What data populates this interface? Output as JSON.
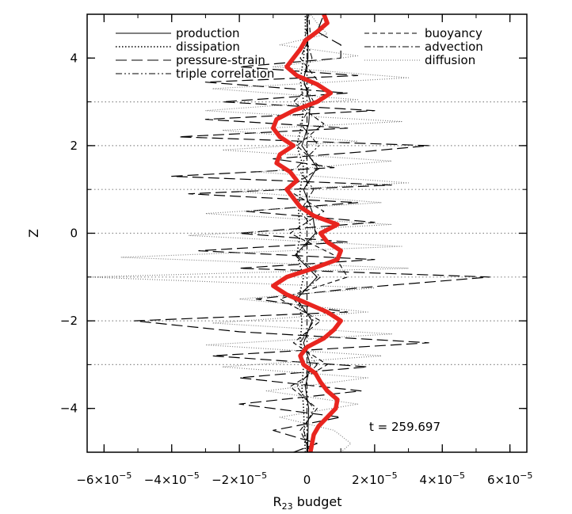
{
  "chart_data": {
    "type": "line",
    "title": "",
    "xlabel": "R",
    "xlabel_sub": "23",
    "xlabel_suffix": " budget",
    "ylabel": "Z",
    "xlim": [
      -6.5e-05,
      6.5e-05
    ],
    "ylim": [
      -5,
      5
    ],
    "grid": false,
    "legend_position": "top",
    "x_ticks": [
      {
        "value": -6e-05,
        "mant": "−6×10",
        "exp": "−5"
      },
      {
        "value": -4e-05,
        "mant": "−4×10",
        "exp": "−5"
      },
      {
        "value": -2e-05,
        "mant": "−2×10",
        "exp": "−5"
      },
      {
        "value": 0,
        "mant": "0",
        "exp": ""
      },
      {
        "value": 2e-05,
        "mant": "2×10",
        "exp": "−5"
      },
      {
        "value": 4e-05,
        "mant": "4×10",
        "exp": "−5"
      },
      {
        "value": 6e-05,
        "mant": "6×10",
        "exp": "−5"
      }
    ],
    "y_ticks": [
      {
        "value": -4,
        "label": "−4"
      },
      {
        "value": -2,
        "label": "−2"
      },
      {
        "value": 0,
        "label": "0"
      },
      {
        "value": 2,
        "label": "2"
      },
      {
        "value": 4,
        "label": "4"
      }
    ],
    "annotation": "t  =  259.697",
    "reference_levels": [
      3,
      2,
      1,
      0,
      -1,
      -2,
      -3
    ],
    "series": [
      {
        "name": "production",
        "dash": "solid",
        "color": "#000000",
        "width": 1.1,
        "z": [
          -5,
          -4.5,
          -4,
          -3.5,
          -3,
          -2.5,
          -2,
          -1.5,
          -1,
          -0.5,
          0,
          0.5,
          1,
          1.5,
          2,
          2.5,
          3,
          3.5,
          4,
          4.5,
          5
        ],
        "x": [
          2e-07,
          3e-07,
          5e-07,
          -5e-07,
          1e-06,
          -1e-06,
          1.5e-06,
          -3e-06,
          3e-06,
          -3.5e-06,
          2.5e-06,
          1.5e-06,
          -1e-06,
          3e-06,
          -1.5e-06,
          5e-07,
          1e-06,
          -1e-06,
          3e-07,
          2e-07,
          1e-07
        ]
      },
      {
        "name": "dissipation",
        "dash": "dot",
        "color": "#000000",
        "width": 1.6,
        "z": [
          -5,
          -4.5,
          -4,
          -3.5,
          -3,
          -2.5,
          -2,
          -1.5,
          -1,
          -0.5,
          0,
          0.5,
          1,
          1.5,
          2,
          2.5,
          3,
          3.5,
          4,
          4.5,
          5
        ],
        "x": [
          -5e-07,
          -8e-07,
          -1e-06,
          -1.5e-06,
          -1e-06,
          -2e-06,
          -1.5e-06,
          -2.5e-06,
          -1e-06,
          -3e-06,
          -2e-06,
          -2.5e-06,
          -2e-06,
          -1e-06,
          -3e-06,
          -1.5e-06,
          -1e-06,
          -2e-06,
          -1e-06,
          -5e-07,
          -5e-07
        ]
      },
      {
        "name": "pressure-strain",
        "dash": "longdash",
        "color": "#000000",
        "width": 1.2,
        "z": [
          -5,
          -4.8,
          -4.5,
          -4.2,
          -3.9,
          -3.6,
          -3.3,
          -3.05,
          -2.8,
          -2.5,
          -2.25,
          -2.0,
          -1.8,
          -1.5,
          -1.25,
          -1.0,
          -0.8,
          -0.6,
          -0.4,
          -0.2,
          0,
          0.25,
          0.5,
          0.7,
          0.9,
          1.1,
          1.3,
          1.5,
          1.7,
          1.85,
          2.0,
          2.2,
          2.4,
          2.6,
          2.8,
          3.0,
          3.2,
          3.45,
          3.6,
          3.8,
          4.0,
          4.3,
          4.6,
          5.0
        ],
        "x": [
          -4e-06,
          3e-06,
          -1e-05,
          1e-05,
          -2e-05,
          1.6e-05,
          -2e-05,
          1.8e-05,
          -2.8e-05,
          3.6e-05,
          -2e-05,
          -5.1e-05,
          1.2e-05,
          -1.5e-05,
          1.5e-05,
          5.4e-05,
          -2e-05,
          2e-05,
          -3.2e-05,
          1.2e-05,
          -2e-05,
          2e-05,
          -1.8e-05,
          1.5e-05,
          -3.5e-05,
          2.5e-05,
          -4e-05,
          8e-06,
          -1e-05,
          1.5e-05,
          3.6e-05,
          -3.8e-05,
          1.2e-05,
          -3e-05,
          2e-05,
          -2.5e-05,
          1.2e-05,
          -3e-05,
          1.5e-05,
          -2e-05,
          1e-05,
          1e-05,
          3e-06,
          5e-06
        ]
      },
      {
        "name": "triple correlation",
        "dash": "dashdotdot",
        "color": "#000000",
        "width": 1.0,
        "z": [
          -5,
          -4.5,
          -4,
          -3.5,
          -3,
          -2.5,
          -2,
          -1.5,
          -1,
          -0.5,
          0,
          0.5,
          1,
          1.5,
          2,
          2.5,
          3,
          3.5,
          4,
          4.5,
          5
        ],
        "x": [
          1e-06,
          -1e-06,
          2e-06,
          -3e-06,
          3e-06,
          -2e-06,
          2e-06,
          -4e-06,
          4e-06,
          -3e-06,
          3e-06,
          -2e-06,
          2e-06,
          -3e-06,
          3.5e-06,
          -2e-06,
          2e-06,
          -1.5e-06,
          1.5e-06,
          -5e-07,
          5e-07
        ]
      },
      {
        "name": "buoyancy",
        "dash": "shortdash",
        "color": "#000000",
        "width": 1.1,
        "z": [
          -5,
          -4.5,
          -4,
          -3.5,
          -3,
          -2.5,
          -2,
          -1.5,
          -1,
          -0.5,
          0,
          0.5,
          1,
          1.5,
          2,
          2.5,
          3,
          3.5,
          4,
          4.5,
          5
        ],
        "x": [
          1e-06,
          -2e-06,
          3e-06,
          -5e-06,
          6e-06,
          -4e-06,
          4e-06,
          -8e-06,
          1.2e-05,
          8e-06,
          -5e-06,
          5e-06,
          -6e-06,
          4e-06,
          -3e-06,
          5e-06,
          -4e-06,
          3e-06,
          -2e-06,
          1e-06,
          5e-07
        ]
      },
      {
        "name": "advection",
        "dash": "dashdot",
        "color": "#000000",
        "width": 1.1,
        "z": [
          -5,
          5
        ],
        "x": [
          0,
          0
        ]
      },
      {
        "name": "diffusion",
        "dash": "finedot",
        "color": "#7a7a7a",
        "width": 1.1,
        "z": [
          -5,
          -4.8,
          -4.5,
          -4.2,
          -3.9,
          -3.6,
          -3.3,
          -3.05,
          -2.8,
          -2.55,
          -2.3,
          -2.05,
          -1.8,
          -1.5,
          -1.25,
          -1.0,
          -0.8,
          -0.55,
          -0.3,
          -0.05,
          0.2,
          0.45,
          0.7,
          0.95,
          1.15,
          1.4,
          1.65,
          1.9,
          2.1,
          2.35,
          2.55,
          2.8,
          3.05,
          3.3,
          3.55,
          3.8,
          4.05,
          4.3,
          4.55,
          4.8,
          5.0
        ],
        "x": [
          1e-05,
          1.3e-05,
          8e-06,
          -8e-06,
          1.5e-05,
          -1.2e-05,
          1.8e-05,
          -2.5e-05,
          2.2e-05,
          -3e-05,
          2.5e-05,
          -2.8e-05,
          1.8e-05,
          -2e-05,
          2e-05,
          -6.5e-05,
          3e-05,
          -5.5e-05,
          2.8e-05,
          -3.5e-05,
          2.5e-05,
          -3e-05,
          2.2e-05,
          -2e-05,
          3e-05,
          -1.5e-05,
          2.5e-05,
          -2.5e-05,
          1.5e-05,
          -2.5e-05,
          2.8e-05,
          -3e-05,
          1.5e-05,
          -2.8e-05,
          3e-05,
          -1e-05,
          1.5e-05,
          -8e-06,
          6e-06,
          3e-06,
          1e-06
        ]
      },
      {
        "name": "",
        "dash": "solid",
        "color": "#e8251f",
        "width": 5.5,
        "z": [
          -5,
          -4.8,
          -4.6,
          -4.4,
          -4.2,
          -4.0,
          -3.8,
          -3.6,
          -3.4,
          -3.2,
          -3.0,
          -2.8,
          -2.6,
          -2.4,
          -2.2,
          -2.0,
          -1.8,
          -1.6,
          -1.4,
          -1.2,
          -1.0,
          -0.8,
          -0.6,
          -0.4,
          -0.2,
          0,
          0.2,
          0.4,
          0.6,
          0.8,
          1.0,
          1.2,
          1.4,
          1.6,
          1.8,
          2.0,
          2.2,
          2.4,
          2.6,
          2.8,
          3.0,
          3.2,
          3.4,
          3.6,
          3.8,
          4.0,
          4.2,
          4.4,
          4.6,
          4.8,
          5.0
        ],
        "x": [
          1e-06,
          1.5e-06,
          2e-06,
          3.5e-06,
          6e-06,
          8.5e-06,
          9e-06,
          6e-06,
          4e-06,
          2.5e-06,
          -1e-06,
          -2e-06,
          0.0,
          5e-06,
          8e-06,
          1e-05,
          6e-06,
          0.0,
          -6e-06,
          -1e-05,
          -6e-06,
          2e-06,
          9e-06,
          1e-05,
          6e-06,
          4e-06,
          9e-06,
          2e-06,
          -2e-06,
          -4e-06,
          -6e-06,
          -3e-06,
          -5e-06,
          -9e-06,
          -8e-06,
          -4e-06,
          -8e-06,
          -1e-05,
          -9e-06,
          -4e-06,
          3e-06,
          7e-06,
          3e-06,
          -3e-06,
          -6e-06,
          -4e-06,
          -2e-06,
          -5e-07,
          3e-06,
          6e-06,
          5e-06
        ]
      }
    ]
  }
}
